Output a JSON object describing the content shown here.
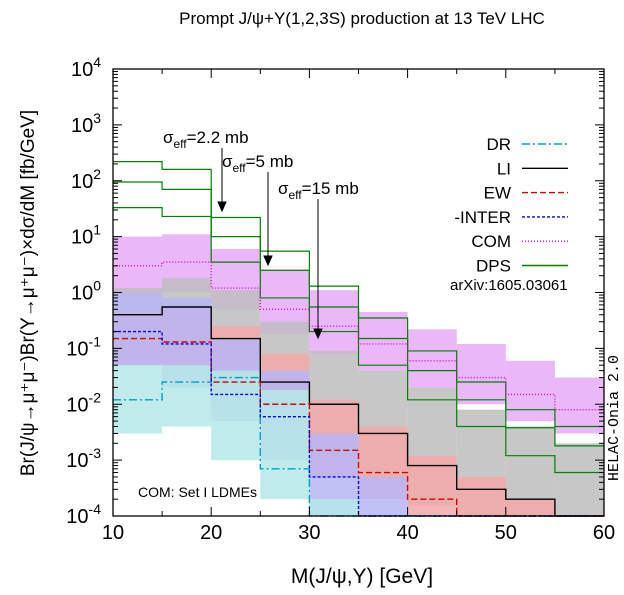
{
  "chart_data": {
    "type": "line",
    "title": "Prompt J/ψ+Υ(1,2,3S) production at 13 TeV LHC",
    "xlabel": "M(J/ψ,Υ) [GeV]",
    "ylabel": "Br(J/ψ→μ⁺μ⁻)Br(Υ→μ⁺μ⁻)×dσ/dM [fb/GeV]",
    "xlim": [
      10,
      60
    ],
    "ylim": [
      0.0001,
      10000
    ],
    "yscale": "log",
    "x_ticks": [
      "10",
      "20",
      "30",
      "40",
      "50",
      "60"
    ],
    "y_ticks": [
      {
        "base": "10",
        "exp": "-4"
      },
      {
        "base": "10",
        "exp": "-3"
      },
      {
        "base": "10",
        "exp": "-2"
      },
      {
        "base": "10",
        "exp": "-1"
      },
      {
        "base": "10",
        "exp": "0"
      },
      {
        "base": "10",
        "exp": "1"
      },
      {
        "base": "10",
        "exp": "2"
      },
      {
        "base": "10",
        "exp": "3"
      },
      {
        "base": "10",
        "exp": "4"
      }
    ],
    "bin_edges": [
      10,
      15,
      20,
      25,
      30,
      35,
      40,
      45,
      50,
      55,
      60
    ],
    "bands": [
      {
        "name": "COM",
        "color": "#e6aaf8",
        "lo": [
          1.0,
          1.0,
          0.5,
          0.18,
          0.08,
          0.04,
          0.02,
          0.01,
          0.005,
          0.003
        ],
        "hi": [
          10,
          11,
          6,
          2.5,
          1.1,
          0.45,
          0.22,
          0.12,
          0.06,
          0.03
        ]
      },
      {
        "name": "LI",
        "color": "#bdbdbd",
        "lo": [
          0.05,
          0.08,
          0.045,
          0.005,
          0.001,
          0.0004,
          0.00015,
          0.0001,
          0.0001,
          0.0001
        ],
        "hi": [
          1.2,
          1.8,
          1.1,
          0.3,
          0.09,
          0.04,
          0.02,
          0.008,
          0.004,
          0.002
        ]
      },
      {
        "name": "EW",
        "color": "#f4a8a8",
        "lo": [
          0.05,
          0.04,
          0.01,
          0.004,
          0.0005,
          0.0002,
          0.0001,
          0.0001,
          0.0001,
          0.0001
        ],
        "hi": [
          0.5,
          0.5,
          0.25,
          0.08,
          0.012,
          0.004,
          0.0012,
          0.0005,
          0.0002,
          0.0001
        ]
      },
      {
        "name": "-INTER",
        "color": "#b6b6f4",
        "lo": [
          0.05,
          0.02,
          0.005,
          0.001,
          0.0001,
          0.0001,
          0.0001,
          0.0001,
          0.0001,
          0.0001
        ],
        "hi": [
          1.0,
          0.8,
          0.15,
          0.04,
          0.003,
          0.0005,
          0.0001,
          0.0001,
          0.0001,
          0.0001
        ]
      },
      {
        "name": "DR",
        "color": "#b5e8e8",
        "lo": [
          0.003,
          0.004,
          0.001,
          0.0002,
          0.0001,
          0.0001,
          0.0001,
          0.0001,
          0.0001,
          0.0001
        ],
        "hi": [
          0.05,
          0.05,
          0.04,
          0.018,
          0.0002,
          0.0001,
          0.0001,
          0.0001,
          0.0001,
          0.0001
        ]
      }
    ],
    "series": [
      {
        "name": "DR",
        "color": "#00a0c0",
        "dash": "8 3 2 3",
        "values": [
          0.012,
          0.025,
          0.03,
          0.0007,
          0.0001,
          0.0001,
          0.0001,
          0.0001,
          0.0001,
          0.0001
        ]
      },
      {
        "name": "LI",
        "color": "#000000",
        "dash": "",
        "values": [
          0.4,
          0.55,
          0.15,
          0.025,
          0.01,
          0.003,
          0.0008,
          0.0003,
          0.0002,
          0.0001
        ]
      },
      {
        "name": "EW",
        "color": "#d00000",
        "dash": "6 3",
        "values": [
          0.15,
          0.13,
          0.025,
          0.01,
          0.0015,
          0.0006,
          0.0002,
          0.0001,
          0.0001,
          0.0001
        ]
      },
      {
        "name": "-INTER",
        "color": "#0000e0",
        "dash": "3 2",
        "values": [
          0.2,
          0.12,
          0.015,
          0.006,
          0.0005,
          0.0001,
          0.0001,
          0.0001,
          0.0001,
          0.0001
        ]
      },
      {
        "name": "COM",
        "color": "#d000d0",
        "dash": "1 2",
        "values": [
          3.0,
          3.5,
          1.2,
          0.5,
          0.25,
          0.12,
          0.06,
          0.03,
          0.015,
          0.008
        ]
      }
    ],
    "dps_curves": [
      {
        "color": "#008000",
        "values": [
          220,
          160,
          22,
          5.5,
          1.3,
          0.35,
          0.09,
          0.025,
          0.008,
          0.004
        ]
      },
      {
        "color": "#008000",
        "values": [
          95,
          70,
          10,
          2.5,
          0.55,
          0.15,
          0.04,
          0.012,
          0.0038,
          0.0018
        ]
      },
      {
        "color": "#008000",
        "values": [
          33,
          23,
          3.5,
          0.8,
          0.2,
          0.05,
          0.012,
          0.004,
          0.0012,
          0.0006
        ]
      }
    ],
    "legend": {
      "placement": "top-right",
      "entries": [
        "DR",
        "LI",
        "EW",
        "-INTER",
        "COM",
        "DPS"
      ]
    },
    "annotations": {
      "sigma_symbol": "σ",
      "eff_sub": "eff",
      "sigma1": "=2.2 mb",
      "sigma2": "=5 mb",
      "sigma3": "=15 mb",
      "arxiv": "arXiv:1605.03061",
      "com_note": "COM: Set I LDMEs",
      "helac": "HELAC-Onia 2.0"
    }
  }
}
